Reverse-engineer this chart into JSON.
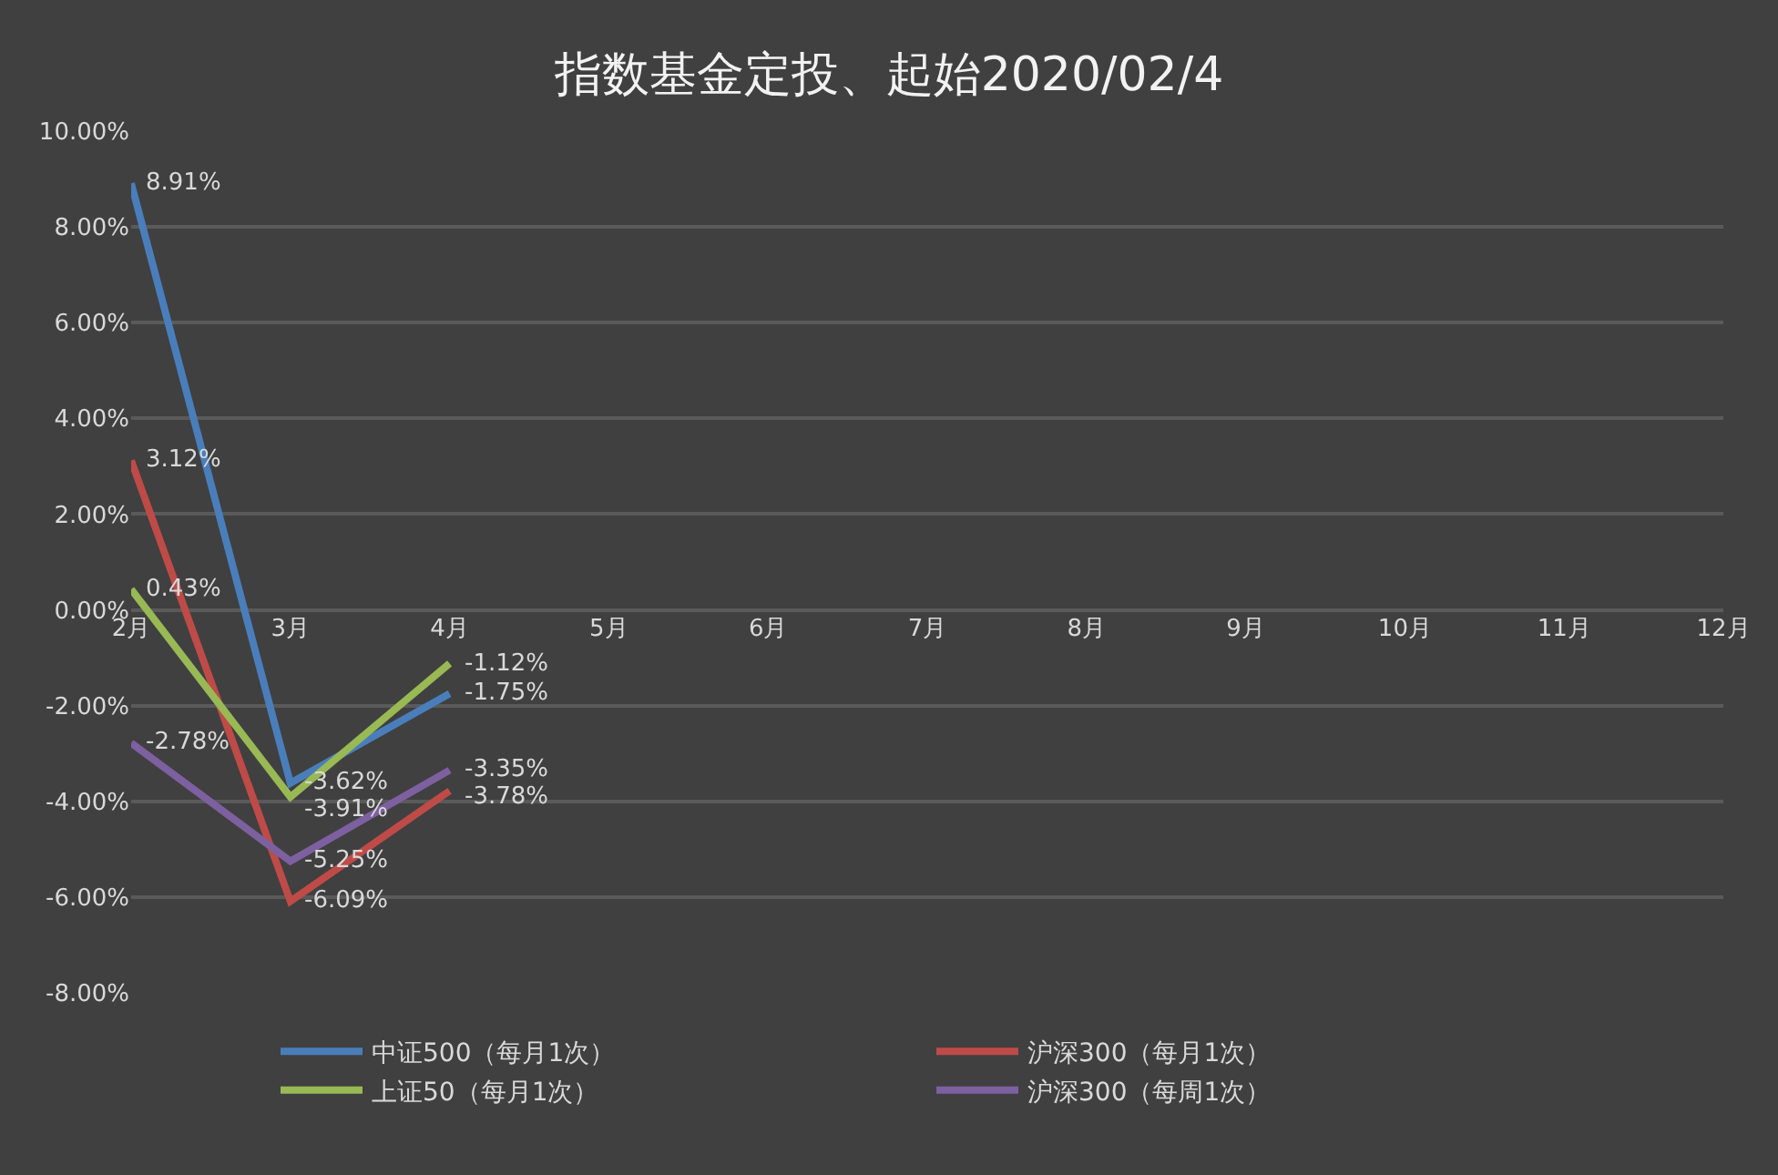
{
  "chart_data": {
    "type": "line",
    "title": "指数基金定投、起始2020/02/4",
    "categories": [
      "2月",
      "3月",
      "4月",
      "5月",
      "6月",
      "7月",
      "8月",
      "9月",
      "10月",
      "11月",
      "12月"
    ],
    "series": [
      {
        "name": "中证500（每月1次）",
        "color": "#4a7ebb",
        "values": [
          8.91,
          -3.62,
          -1.75,
          null,
          null,
          null,
          null,
          null,
          null,
          null,
          null
        ],
        "value_labels": [
          "8.91%",
          "-3.62%",
          "-1.75%",
          null,
          null,
          null,
          null,
          null,
          null,
          null,
          null
        ]
      },
      {
        "name": "沪深300（每月1次）",
        "color": "#be4b48",
        "values": [
          3.12,
          -6.09,
          -3.78,
          null,
          null,
          null,
          null,
          null,
          null,
          null,
          null
        ],
        "value_labels": [
          "3.12%",
          "-6.09%",
          "-3.78%",
          null,
          null,
          null,
          null,
          null,
          null,
          null,
          null
        ]
      },
      {
        "name": "上证50（每月1次）",
        "color": "#98b954",
        "values": [
          0.43,
          -3.91,
          -1.12,
          null,
          null,
          null,
          null,
          null,
          null,
          null,
          null
        ],
        "value_labels": [
          "0.43%",
          "-3.91%",
          "-1.12%",
          null,
          null,
          null,
          null,
          null,
          null,
          null,
          null
        ]
      },
      {
        "name": "沪深300（每周1次）",
        "color": "#7d60a0",
        "values": [
          -2.78,
          -5.25,
          -3.35,
          null,
          null,
          null,
          null,
          null,
          null,
          null,
          null
        ],
        "value_labels": [
          "-2.78%",
          "-5.25%",
          "-3.35%",
          null,
          null,
          null,
          null,
          null,
          null,
          null,
          null
        ]
      }
    ],
    "ylim": [
      -8,
      10
    ],
    "yticks": [
      {
        "value": -8,
        "label": "-8.00%"
      },
      {
        "value": -6,
        "label": "-6.00%"
      },
      {
        "value": -4,
        "label": "-4.00%"
      },
      {
        "value": -2,
        "label": "-2.00%"
      },
      {
        "value": 0,
        "label": "0.00%"
      },
      {
        "value": 2,
        "label": "2.00%"
      },
      {
        "value": 4,
        "label": "4.00%"
      },
      {
        "value": 6,
        "label": "6.00%"
      },
      {
        "value": 8,
        "label": "8.00%"
      },
      {
        "value": 10,
        "label": "10.00%"
      }
    ],
    "grid": "y",
    "legend": "bottom",
    "marker": "none",
    "line_style": "solid"
  }
}
